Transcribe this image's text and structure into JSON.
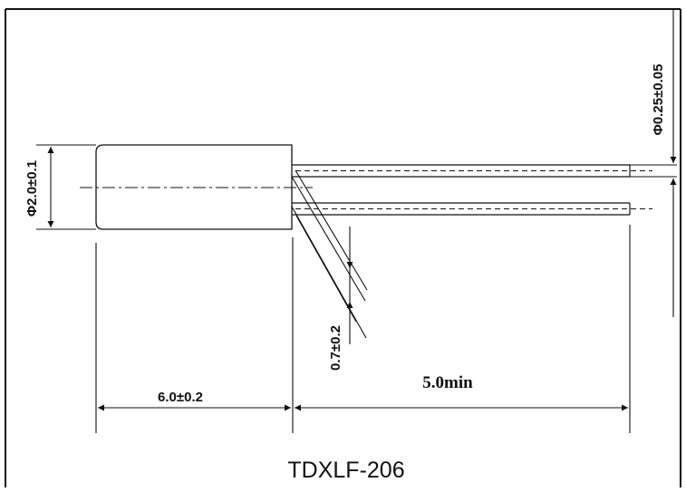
{
  "drawing": {
    "part_number": "TDXLF-206",
    "dimensions": {
      "body_diameter": "Φ2.0±0.1",
      "lead_diameter": "Φ0.25±0.05",
      "lead_spacing": "0.7±0.2",
      "body_length": "6.0±0.2",
      "lead_length": "5.0min"
    },
    "line_color": "#111111",
    "background": "#ffffff"
  }
}
